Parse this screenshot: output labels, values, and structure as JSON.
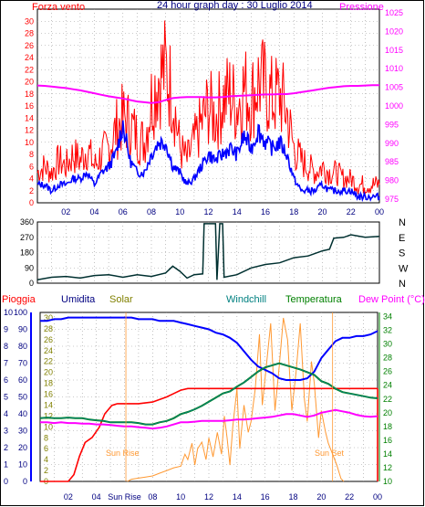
{
  "chart_data": [
    {
      "type": "line",
      "title": "24 hour graph day : 30 Luglio 2014",
      "left_axis_label": "Forza vento",
      "right_axis_label": "Pressione",
      "y_left_ticks": [
        "0",
        "2",
        "4",
        "6",
        "8",
        "10",
        "12",
        "14",
        "16",
        "18",
        "20",
        "22",
        "24",
        "26",
        "28",
        "30"
      ],
      "y_right_ticks": [
        "975",
        "980",
        "985",
        "990",
        "995",
        "1000",
        "1005",
        "1010",
        "1015",
        "1020",
        "1025"
      ],
      "x_ticks": [
        "02",
        "04",
        "06",
        "08",
        "10",
        "12",
        "14",
        "16",
        "18",
        "20",
        "22",
        "00"
      ],
      "ylim_left": [
        0,
        32
      ],
      "ylim_right": [
        974,
        1026
      ],
      "colors": {
        "gust": "#ff0000",
        "wind": "#0000ff",
        "pressure": "#ff00ff",
        "left_axis": "#ff0000",
        "right_axis": "#ff00ff"
      },
      "hours": [
        0,
        0.5,
        1,
        1.5,
        2,
        2.5,
        3,
        3.5,
        4,
        4.5,
        5,
        5.5,
        6,
        6.5,
        7,
        7.5,
        8,
        8.5,
        9,
        9.5,
        10,
        10.5,
        11,
        11.5,
        12,
        12.5,
        13,
        13.5,
        14,
        14.5,
        15,
        15.5,
        16,
        16.5,
        17,
        17.5,
        18,
        18.5,
        19,
        19.5,
        20,
        20.5,
        21,
        21.5,
        22,
        22.5,
        23,
        23.5,
        24
      ],
      "series": [
        {
          "key": "gust",
          "values": [
            5,
            6,
            5,
            7,
            6,
            8,
            7,
            9,
            6,
            8,
            9,
            12,
            14,
            13,
            11,
            10,
            17,
            21,
            22,
            18,
            9,
            7,
            10,
            13,
            16,
            14,
            17,
            18,
            16,
            19,
            17,
            20,
            19,
            17,
            18,
            15,
            9,
            7,
            6,
            5,
            6,
            5,
            5,
            4,
            4,
            3,
            3,
            3,
            3
          ]
        },
        {
          "key": "wind",
          "values": [
            3,
            3,
            2,
            3,
            3,
            4,
            4,
            5,
            3,
            5,
            6,
            8,
            13,
            7,
            5,
            5,
            8,
            10,
            10,
            6,
            5,
            3,
            4,
            6,
            8,
            7,
            8,
            9,
            8,
            11,
            9,
            12,
            10,
            9,
            10,
            8,
            4,
            2,
            2,
            2,
            3,
            2,
            2,
            2,
            2,
            1,
            1,
            1,
            1
          ]
        },
        {
          "key": "pressure",
          "values": [
            1005.5,
            1005.4,
            1005.2,
            1005,
            1004.8,
            1004.5,
            1004.2,
            1003.8,
            1003.4,
            1003,
            1002.6,
            1002.3,
            1002,
            1001.6,
            1001.2,
            1001,
            1000.8,
            1001,
            1001.6,
            1002.1,
            1002.3,
            1002.4,
            1002.4,
            1002.4,
            1002.3,
            1002.3,
            1002.4,
            1002.6,
            1002.7,
            1002.8,
            1002.9,
            1003,
            1003.1,
            1003.1,
            1003.2,
            1003.2,
            1003.4,
            1003.7,
            1004,
            1004.3,
            1004.6,
            1004.9,
            1005.1,
            1005.3,
            1005.4,
            1005.4,
            1005.5,
            1005.6,
            1005.6
          ]
        }
      ]
    },
    {
      "type": "line",
      "title": "",
      "y_left_ticks": [
        "0",
        "90",
        "180",
        "270",
        "360"
      ],
      "direction_labels": [
        "N",
        "W",
        "S",
        "E",
        "N"
      ],
      "x_ticks": [
        "02",
        "04",
        "06",
        "08",
        "10",
        "12",
        "14",
        "16",
        "18",
        "20",
        "22",
        "00"
      ],
      "ylim": [
        0,
        360
      ],
      "colors": {
        "direction": "#003030"
      },
      "series": [
        {
          "key": "direction",
          "points": [
            [
              0,
              20
            ],
            [
              1,
              35
            ],
            [
              2,
              40
            ],
            [
              3,
              30
            ],
            [
              4,
              45
            ],
            [
              5,
              50
            ],
            [
              6,
              35
            ],
            [
              7,
              50
            ],
            [
              8,
              40
            ],
            [
              9,
              60
            ],
            [
              9.5,
              100
            ],
            [
              10,
              70
            ],
            [
              10.5,
              30
            ],
            [
              11,
              50
            ],
            [
              11.6,
              55
            ],
            [
              11.7,
              350
            ],
            [
              12.5,
              350
            ],
            [
              12.6,
              20
            ],
            [
              12.8,
              350
            ],
            [
              13,
              350
            ],
            [
              13.1,
              35
            ],
            [
              14,
              50
            ],
            [
              15,
              90
            ],
            [
              16,
              110
            ],
            [
              17,
              120
            ],
            [
              18,
              150
            ],
            [
              19,
              160
            ],
            [
              20,
              190
            ],
            [
              20.5,
              200
            ],
            [
              20.8,
              265
            ],
            [
              21.5,
              270
            ],
            [
              22,
              285
            ],
            [
              23,
              270
            ],
            [
              24,
              275
            ]
          ]
        }
      ]
    },
    {
      "type": "line",
      "title": "",
      "legend": [
        "Pioggia",
        "Umidita",
        "Solar",
        "Windchill",
        "Temperatura",
        "Dew Point (°C)"
      ],
      "y_rain_ticks": [
        "0",
        "1",
        "2",
        "3",
        "4",
        "5",
        "6",
        "7",
        "8",
        "9",
        "10"
      ],
      "y_humidity_ticks": [
        "0",
        "10",
        "20",
        "30",
        "40",
        "50",
        "60",
        "70",
        "80",
        "90",
        "100"
      ],
      "y_solar_ticks": [
        "0",
        "2",
        "4",
        "6",
        "8",
        "10",
        "12",
        "14",
        "16",
        "18",
        "20",
        "22",
        "24",
        "26",
        "28",
        "30"
      ],
      "y_temp_ticks": [
        "10",
        "12",
        "14",
        "16",
        "18",
        "20",
        "22",
        "24",
        "26",
        "28",
        "30",
        "32",
        "34"
      ],
      "x_ticks": [
        "02",
        "04",
        "Sun Rise",
        "08",
        "10",
        "12",
        "14",
        "16",
        "18",
        "20",
        "22",
        "00"
      ],
      "annotations": [
        "Sun Rise",
        "Sun Set"
      ],
      "colors": {
        "rain": "#ff0000",
        "humidity": "#0000ff",
        "solar": "#ff9933",
        "windchill": "#008080",
        "temperature": "#008000",
        "dewpoint": "#ff00ff",
        "label_rain": "#ff0000",
        "label_humidity": "#000080",
        "label_solar": "#808000",
        "label_windchill": "#008080",
        "label_temperature": "#008000",
        "label_dewpoint": "#ff00ff"
      },
      "hours": [
        0,
        0.5,
        1,
        1.5,
        2,
        2.5,
        3,
        3.5,
        4,
        4.5,
        5,
        5.5,
        6,
        6.5,
        7,
        7.5,
        8,
        8.5,
        9,
        9.5,
        10,
        10.5,
        11,
        11.5,
        12,
        12.5,
        13,
        13.5,
        14,
        14.5,
        15,
        15.5,
        16,
        16.5,
        17,
        17.5,
        18,
        18.5,
        19,
        19.5,
        20,
        20.5,
        21,
        21.5,
        22,
        22.5,
        23,
        23.5,
        24
      ],
      "series": [
        {
          "key": "humidity",
          "axis": "humidity",
          "values": [
            95,
            95,
            96,
            96,
            97,
            97,
            97,
            97,
            97,
            97,
            97,
            97,
            97,
            97,
            96,
            96,
            96,
            95,
            95,
            95,
            94,
            93,
            92,
            91,
            90,
            88,
            87,
            85,
            82,
            77,
            72,
            68,
            66,
            64,
            61,
            60,
            60,
            60,
            61,
            65,
            73,
            78,
            83,
            85,
            85,
            86,
            86,
            87,
            89
          ]
        },
        {
          "key": "temperature",
          "axis": "temp",
          "values": [
            19.2,
            19.3,
            19.2,
            19.2,
            19.3,
            19.2,
            19.2,
            19,
            18.9,
            18.8,
            18.6,
            18.6,
            18.6,
            18.6,
            18.5,
            18.3,
            18.3,
            18.6,
            18.8,
            19.2,
            19.8,
            20.1,
            20.5,
            21,
            21.6,
            22.2,
            22.8,
            23.1,
            23.8,
            24.4,
            25.2,
            26,
            26.6,
            26.9,
            27.2,
            26.9,
            26.6,
            26.3,
            25.9,
            25.5,
            24.6,
            24.2,
            23.5,
            23,
            22.8,
            22.6,
            22.4,
            22.2,
            22.1
          ]
        },
        {
          "key": "windchill",
          "axis": "temp",
          "values": [
            19.2,
            19.3,
            19.2,
            19.2,
            19.3,
            19.2,
            19.2,
            19,
            18.9,
            18.8,
            18.6,
            18.6,
            18.6,
            18.6,
            18.5,
            18.3,
            18.3,
            18.6,
            18.8,
            19.2,
            19.8,
            20.1,
            20.5,
            21,
            21.6,
            22.2,
            22.8,
            23.1,
            23.8,
            24.4,
            25.2,
            26,
            26.6,
            26.9,
            27.2,
            26.9,
            26.6,
            26.3,
            25.9,
            25.5,
            24.6,
            24.2,
            23.5,
            23,
            22.8,
            22.6,
            22.4,
            22.2,
            22.1
          ]
        },
        {
          "key": "dewpoint",
          "axis": "temp",
          "values": [
            18.6,
            18.6,
            18.5,
            18.6,
            18.5,
            18.5,
            18.4,
            18.4,
            18.3,
            18.3,
            18.2,
            18.1,
            18,
            18,
            17.9,
            17.8,
            17.7,
            17.8,
            18,
            18.3,
            18.6,
            18.6,
            18.7,
            18.8,
            18.8,
            18.8,
            18.8,
            18.9,
            19,
            19,
            19.1,
            19.2,
            19.3,
            19.4,
            19.6,
            19.8,
            19.8,
            19.6,
            19.4,
            19.6,
            20,
            20.2,
            20.4,
            20.2,
            20,
            19.7,
            19.5,
            19.4,
            19.5
          ]
        },
        {
          "key": "rain",
          "axis": "rain",
          "points": [
            [
              0,
              0
            ],
            [
              2,
              0
            ],
            [
              2.4,
              0.4
            ],
            [
              2.8,
              1.5
            ],
            [
              3.2,
              2.3
            ],
            [
              3.7,
              2.6
            ],
            [
              4.2,
              3.2
            ],
            [
              4.6,
              4
            ],
            [
              5.1,
              4.5
            ],
            [
              5.5,
              4.6
            ],
            [
              7,
              4.6
            ],
            [
              8,
              4.7
            ],
            [
              9,
              5
            ],
            [
              9.5,
              5.2
            ],
            [
              10,
              5.4
            ],
            [
              10.5,
              5.5
            ],
            [
              24,
              5.5
            ]
          ]
        },
        {
          "key": "solar",
          "axis": "solar",
          "points": [
            [
              6.2,
              0
            ],
            [
              6.5,
              0.4
            ],
            [
              7,
              0.6
            ],
            [
              7.5,
              0.8
            ],
            [
              8,
              1
            ],
            [
              8.5,
              1.5
            ],
            [
              9,
              2
            ],
            [
              9.5,
              2.5
            ],
            [
              10,
              2.8
            ],
            [
              10.3,
              5
            ],
            [
              10.5,
              4
            ],
            [
              10.8,
              7
            ],
            [
              11,
              3
            ],
            [
              11.2,
              6
            ],
            [
              11.5,
              7.2
            ],
            [
              11.8,
              4
            ],
            [
              12,
              8
            ],
            [
              12.3,
              4.5
            ],
            [
              12.6,
              9
            ],
            [
              12.9,
              5
            ],
            [
              13.1,
              12
            ],
            [
              13.3,
              8
            ],
            [
              13.5,
              3
            ],
            [
              13.7,
              10
            ],
            [
              14,
              17
            ],
            [
              14.2,
              6
            ],
            [
              14.5,
              14
            ],
            [
              14.8,
              9
            ],
            [
              15,
              11
            ],
            [
              15.3,
              17
            ],
            [
              15.6,
              27
            ],
            [
              15.8,
              14
            ],
            [
              16,
              19
            ],
            [
              16.4,
              29
            ],
            [
              16.7,
              13
            ],
            [
              17,
              21
            ],
            [
              17.3,
              30
            ],
            [
              17.6,
              26
            ],
            [
              17.9,
              13
            ],
            [
              18.2,
              20
            ],
            [
              18.5,
              29
            ],
            [
              18.8,
              15
            ],
            [
              19,
              11
            ],
            [
              19.3,
              22
            ],
            [
              19.5,
              18
            ],
            [
              19.8,
              8
            ],
            [
              20,
              13
            ],
            [
              20.3,
              9
            ],
            [
              20.5,
              7
            ],
            [
              20.8,
              5
            ],
            [
              21.1,
              3
            ],
            [
              21.4,
              0.5
            ],
            [
              21.6,
              0
            ]
          ]
        }
      ]
    }
  ]
}
